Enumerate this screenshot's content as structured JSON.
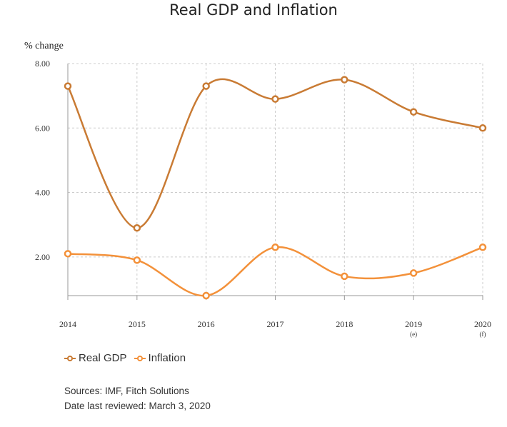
{
  "chart_data": {
    "type": "line",
    "title": "Real GDP and Inflation",
    "ylabel": "% change",
    "xlabel": "",
    "categories": [
      "2014",
      "2015",
      "2016",
      "2017",
      "2018",
      "2019",
      "2020"
    ],
    "category_notes": [
      "",
      "",
      "",
      "",
      "",
      "(e)",
      "(f)"
    ],
    "y_ticks": [
      "2.00",
      "4.00",
      "6.00",
      "8.00"
    ],
    "ylim": [
      0.8,
      8.0
    ],
    "grid": true,
    "legend_position": "bottom-left",
    "series": [
      {
        "name": "Real GDP",
        "color": "#c97b34",
        "values": [
          7.3,
          2.9,
          7.3,
          6.9,
          7.5,
          6.5,
          6.0
        ]
      },
      {
        "name": "Inflation",
        "color": "#f3913a",
        "values": [
          2.1,
          1.9,
          0.8,
          2.3,
          1.4,
          1.5,
          2.3
        ]
      }
    ]
  },
  "footer": {
    "sources": "Sources: IMF, Fitch Solutions",
    "reviewed": "Date last reviewed: March 3, 2020"
  }
}
